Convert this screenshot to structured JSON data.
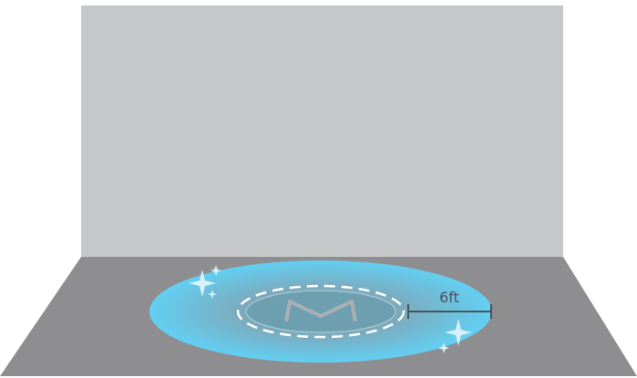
{
  "dimension": {
    "label": "6ft"
  }
}
